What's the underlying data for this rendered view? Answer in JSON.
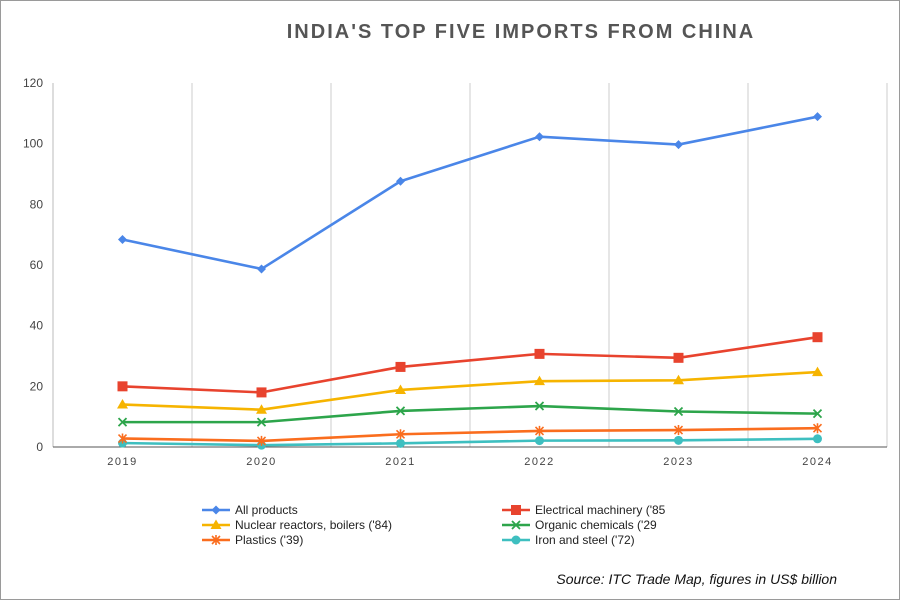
{
  "chart_data": {
    "type": "line",
    "title": "INDIA'S TOP FIVE IMPORTS FROM CHINA",
    "xlabel": "",
    "ylabel": "",
    "x": [
      "2019",
      "2020",
      "2021",
      "2022",
      "2023",
      "2024"
    ],
    "ylim": [
      0,
      120
    ],
    "yticks": [
      "0",
      "20",
      "40",
      "60",
      "80",
      "100",
      "120"
    ],
    "grid": "vertical",
    "legend_position": "bottom",
    "series": [
      {
        "name": "All products",
        "color": "#4a86e8",
        "marker": "diamond",
        "values": [
          68.4,
          58.7,
          87.6,
          102.3,
          99.7,
          108.9
        ]
      },
      {
        "name": "Electrical machinery ('85",
        "color": "#e8432e",
        "marker": "square",
        "values": [
          20.0,
          18.0,
          26.4,
          30.7,
          29.4,
          36.2
        ]
      },
      {
        "name": "Nuclear reactors, boilers ('84)",
        "color": "#f6b400",
        "marker": "triangle",
        "values": [
          14.0,
          12.3,
          18.8,
          21.7,
          22.0,
          24.7
        ]
      },
      {
        "name": "Organic chemicals ('29",
        "color": "#2da54b",
        "marker": "x",
        "values": [
          8.2,
          8.2,
          11.9,
          13.5,
          11.7,
          11.0
        ]
      },
      {
        "name": "Plastics ('39)",
        "color": "#fa6d1e",
        "marker": "star",
        "values": [
          2.8,
          2.0,
          4.2,
          5.3,
          5.6,
          6.2
        ]
      },
      {
        "name": "Iron and steel ('72)",
        "color": "#3ebfc0",
        "marker": "circle",
        "values": [
          1.3,
          0.6,
          1.2,
          2.1,
          2.2,
          2.7
        ]
      }
    ]
  },
  "source": "Source: ITC Trade Map, figures in US$ billion"
}
